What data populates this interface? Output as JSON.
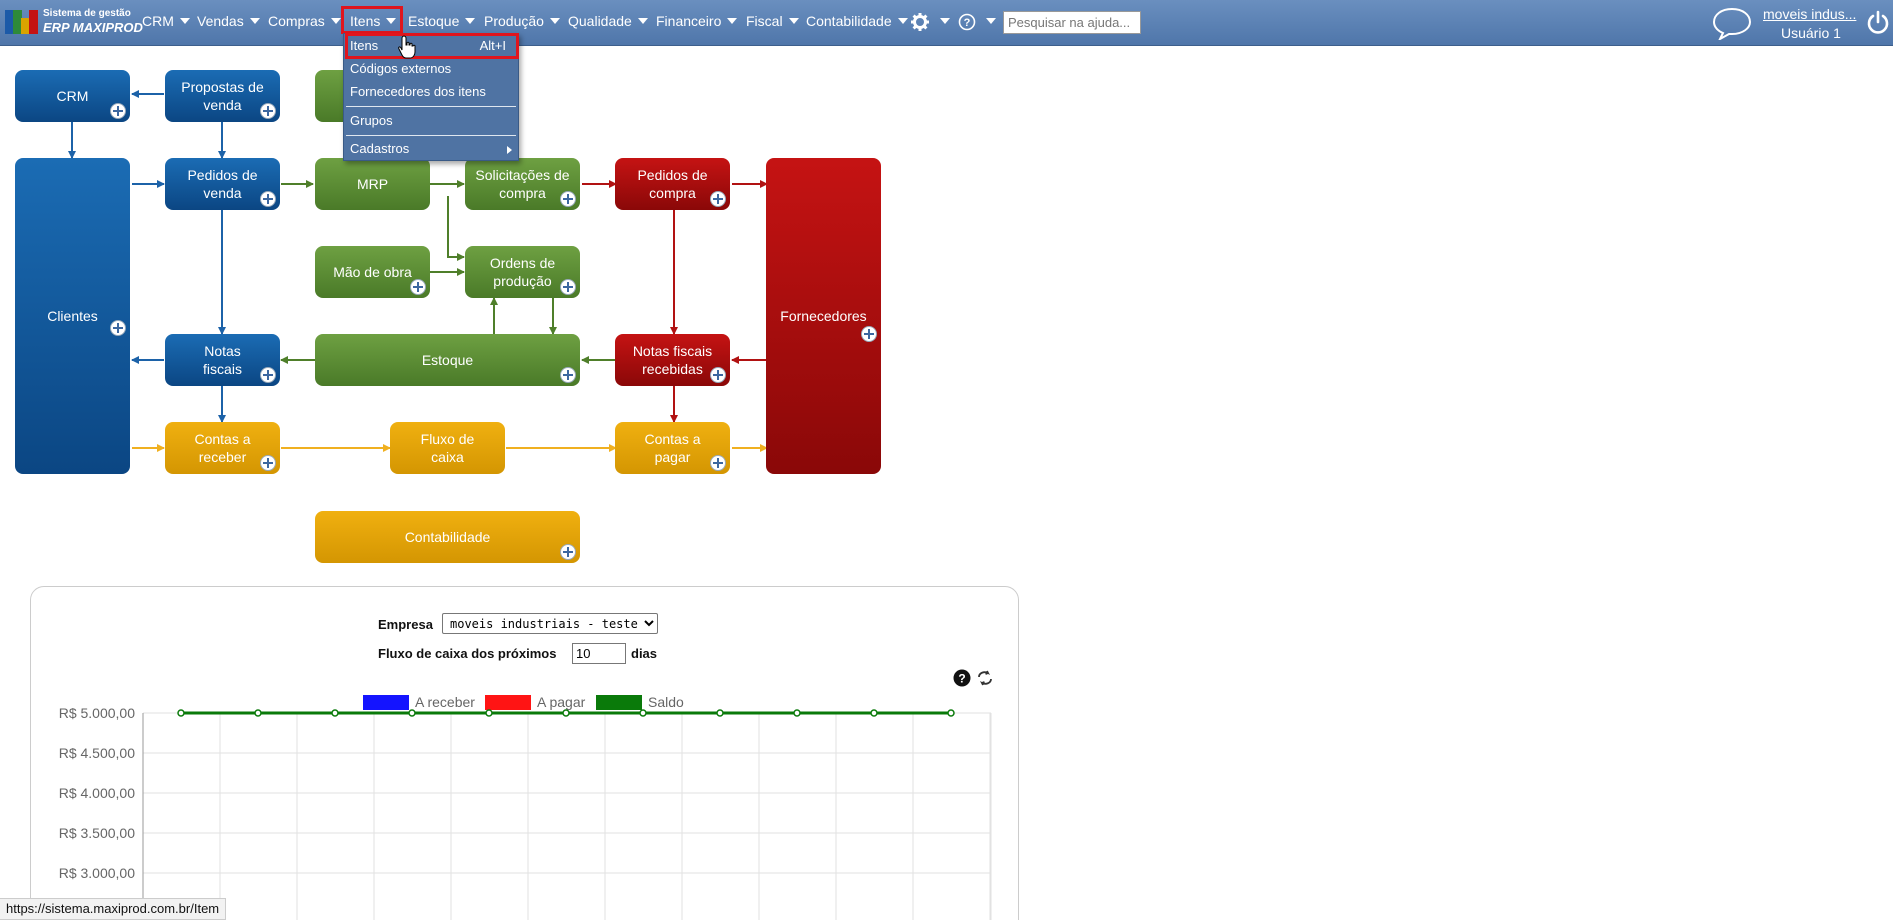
{
  "app": {
    "logo_line1": "Sistema de gestão",
    "logo_line2": "ERP MAXIPROD"
  },
  "nav": {
    "items": [
      {
        "label": "CRM"
      },
      {
        "label": "Vendas"
      },
      {
        "label": "Compras"
      },
      {
        "label": "Itens"
      },
      {
        "label": "Estoque"
      },
      {
        "label": "Produção"
      },
      {
        "label": "Qualidade"
      },
      {
        "label": "Financeiro"
      },
      {
        "label": "Fiscal"
      },
      {
        "label": "Contabilidade"
      }
    ],
    "settings_icon": "gear-icon",
    "help_icon": "question-icon",
    "search_placeholder": "Pesquisar na ajuda..."
  },
  "user": {
    "company": "moveis indus...",
    "name": "Usuário 1"
  },
  "dropdown": {
    "items": [
      {
        "label": "Itens",
        "shortcut": "Alt+I"
      },
      {
        "label": "Códigos externos"
      },
      {
        "label": "Fornecedores dos itens"
      },
      {
        "label": "Grupos"
      },
      {
        "label": "Cadastros"
      }
    ]
  },
  "diagram": {
    "crm": "CRM",
    "propostas": "Propostas de venda",
    "clientes": "Clientes",
    "pedidos_venda": "Pedidos de venda",
    "mrp": "MRP",
    "solicitacoes": "Solicitações de compra",
    "pedidos_compra": "Pedidos de compra",
    "fornecedores": "Fornecedores",
    "mao_obra": "Mão de obra",
    "ordens": "Ordens de produção",
    "notas_fiscais": "Notas fiscais",
    "estoque": "Estoque",
    "nf_recebidas": "Notas fiscais recebidas",
    "contas_receber": "Contas a receber",
    "fluxo_caixa": "Fluxo de caixa",
    "contas_pagar": "Contas a pagar",
    "contabilidade": "Contabilidade",
    "colors": {
      "blue": "#0b4683",
      "green": "#4a7a28",
      "red": "#8a0808",
      "orange": "#d49602"
    }
  },
  "panel": {
    "empresa_label": "Empresa",
    "empresa_value": "moveis industriais - teste Jonat",
    "fluxo_label": "Fluxo de caixa dos próximos",
    "fluxo_days": "10",
    "dias_label": "dias"
  },
  "chart_data": {
    "type": "line",
    "series": [
      {
        "name": "A receber",
        "color": "#1414ff",
        "values": [
          5000,
          5000,
          5000,
          5000,
          5000,
          5000,
          5000,
          5000,
          5000,
          5000,
          5000
        ]
      },
      {
        "name": "A pagar",
        "color": "#ff1414",
        "values": [
          5000,
          5000,
          5000,
          5000,
          5000,
          5000,
          5000,
          5000,
          5000,
          5000,
          5000
        ]
      },
      {
        "name": "Saldo",
        "color": "#0a7a0a",
        "values": [
          5000,
          5000,
          5000,
          5000,
          5000,
          5000,
          5000,
          5000,
          5000,
          5000,
          5000
        ]
      }
    ],
    "y_ticks": [
      "R$ 5.000,00",
      "R$ 4.500,00",
      "R$ 4.000,00",
      "R$ 3.500,00",
      "R$ 3.000,00"
    ],
    "y_tick_values": [
      5000,
      4500,
      4000,
      3500,
      3000
    ],
    "ylim": [
      3000,
      5000
    ],
    "grid": true,
    "legend_position": "top"
  },
  "status_bar": {
    "url": "https://sistema.maxiprod.com.br/Item"
  }
}
